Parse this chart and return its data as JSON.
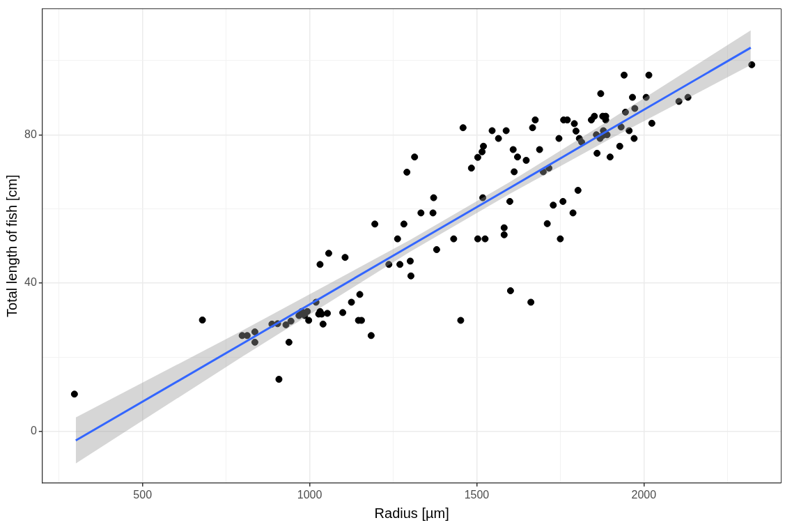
{
  "chart_data": {
    "type": "scatter",
    "xlabel": "Radius [µm]",
    "ylabel": "Total length of fish [cm]",
    "xlim": [
      200,
      2411
    ],
    "ylim": [
      -14,
      114
    ],
    "xticks": [
      {
        "value": 250,
        "label": null
      },
      500,
      {
        "value": 750,
        "label": null
      },
      1000,
      {
        "value": 1250,
        "label": null
      },
      1500,
      {
        "value": 1750,
        "label": null
      },
      2000,
      {
        "value": 2250,
        "label": null
      }
    ],
    "yticks": [
      0,
      {
        "value": 20,
        "label": null
      },
      40,
      {
        "value": 60,
        "label": null
      },
      80,
      {
        "value": 100,
        "label": null
      }
    ],
    "grid": true,
    "legend": false,
    "series": [
      {
        "marker": "circle",
        "color": "#000000",
        "x": [
          296,
          679,
          798,
          813,
          836,
          836,
          887,
          904,
          908,
          929,
          938,
          944,
          968,
          976,
          985,
          997,
          993,
          1019,
          1027,
          1031,
          1036,
          1031,
          1040,
          1057,
          1053,
          1099,
          1106,
          1125,
          1150,
          1146,
          1155,
          1184,
          1195,
          1237,
          1263,
          1270,
          1282,
          1291,
          1301,
          1303,
          1314,
          1333,
          1369,
          1371,
          1380,
          1431,
          1452,
          1459,
          1484,
          1503,
          1503,
          1516,
          1518,
          1520,
          1525,
          1546,
          1565,
          1582,
          1582,
          1588,
          1599,
          1601,
          1609,
          1612,
          1622,
          1648,
          1662,
          1667,
          1675,
          1688,
          1699,
          1716,
          1711,
          1729,
          1746,
          1750,
          1758,
          1760,
          1771,
          1792,
          1788,
          1797,
          1803,
          1807,
          1814,
          1843,
          1852,
          1858,
          1860,
          1869,
          1877,
          1871,
          1877,
          1886,
          1879,
          1886,
          1890,
          1899,
          1928,
          1932,
          1941,
          1945,
          1956,
          1966,
          1971,
          1973,
          2007,
          2015,
          2024,
          2105,
          2132,
          2323
        ],
        "values": [
          10,
          30,
          25.8,
          25.8,
          26.8,
          24,
          28.9,
          29,
          14,
          28.7,
          24,
          29.7,
          31.2,
          32.3,
          31.2,
          29.9,
          32.3,
          34.8,
          31.6,
          32.3,
          31.6,
          45,
          28.9,
          48,
          31.8,
          32,
          46.9,
          34.8,
          36.9,
          29.9,
          29.9,
          25.8,
          55.9,
          45,
          51.9,
          45,
          55.9,
          69.9,
          45.9,
          41.9,
          74,
          58.9,
          58.9,
          63,
          49,
          51.9,
          29.9,
          81.9,
          71,
          73.9,
          51.9,
          75.4,
          63,
          76.9,
          51.9,
          81.1,
          79,
          54.9,
          53,
          81.1,
          62,
          37.9,
          76,
          70,
          74,
          73.1,
          34.8,
          81.9,
          84,
          76,
          70,
          71,
          56,
          61,
          79,
          51.9,
          62,
          84,
          84,
          83,
          58.9,
          81,
          65,
          79,
          78,
          84,
          85,
          80,
          75,
          79,
          79.8,
          91.1,
          85,
          85,
          81.1,
          84,
          80,
          74,
          76.9,
          82.1,
          96.1,
          86.1,
          81.1,
          90.1,
          79,
          87.1,
          90.1,
          96.1,
          83.1,
          89,
          90.1,
          98.9
        ]
      },
      {
        "type": "line",
        "marker": "none",
        "color": "#3366ff",
        "x": [
          300,
          800,
          1300,
          1600,
          1900,
          2320
        ],
        "values": [
          -2.5,
          23.7,
          50,
          65.7,
          81.5,
          103.5
        ],
        "lower": [
          -8.7,
          20.2,
          48.4,
          64.1,
          78.9,
          98.8
        ],
        "upper": [
          3.7,
          27.2,
          51.6,
          67.3,
          84.1,
          108.2
        ]
      }
    ]
  }
}
